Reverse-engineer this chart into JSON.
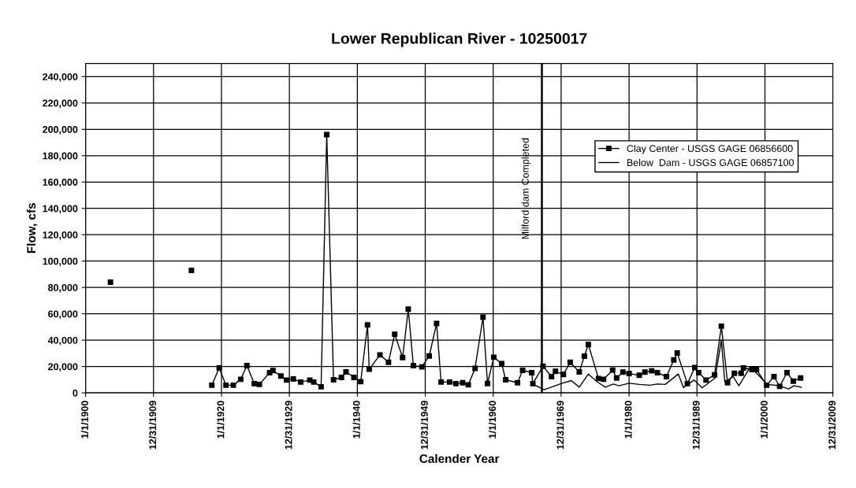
{
  "chart_data": {
    "type": "line",
    "title": "Lower Republican River - 10250017",
    "xlabel": "Calender Year",
    "ylabel": "Flow, cfs",
    "xlim": [
      "1900-01-01",
      "2009-12-31"
    ],
    "xticks": [
      {
        "value": "1900-01-01",
        "label": "1/1/1900"
      },
      {
        "value": "1909-12-31",
        "label": "12/31/1909"
      },
      {
        "value": "1920-01-01",
        "label": "1/1/1920"
      },
      {
        "value": "1929-12-31",
        "label": "12/31/1929"
      },
      {
        "value": "1940-01-01",
        "label": "1/1/1940"
      },
      {
        "value": "1949-12-31",
        "label": "12/31/1949"
      },
      {
        "value": "1960-01-01",
        "label": "1/1/1960"
      },
      {
        "value": "1969-12-31",
        "label": "12/31/1969"
      },
      {
        "value": "1980-01-01",
        "label": "1/1/1980"
      },
      {
        "value": "1989-12-31",
        "label": "12/31/1989"
      },
      {
        "value": "2000-01-01",
        "label": "1/1/2000"
      },
      {
        "value": "2009-12-31",
        "label": "12/31/2009"
      }
    ],
    "ylim": [
      0,
      250000
    ],
    "yticks": [
      0,
      {
        "value": 20000,
        "label": "20,000"
      },
      {
        "value": 40000,
        "label": "40,000"
      },
      {
        "value": 60000,
        "label": "60,000"
      },
      {
        "value": 80000,
        "label": "80,000"
      },
      {
        "value": 100000,
        "label": "100,000"
      },
      {
        "value": 120000,
        "label": "120,000"
      },
      {
        "value": 140000,
        "label": "140,000"
      },
      {
        "value": 160000,
        "label": "160,000"
      },
      {
        "value": 180000,
        "label": "180,000"
      },
      {
        "value": 200000,
        "label": "200,000"
      },
      {
        "value": 220000,
        "label": "220,000"
      },
      {
        "value": 240000,
        "label": "240,000"
      }
    ],
    "grid": true,
    "legend": "top right",
    "ref_lines": [
      {
        "axis": "x",
        "value": "1967-03-01",
        "label": "Milford dam Completed",
        "color": "#000000",
        "line_style": "solid"
      }
    ],
    "series": [
      {
        "name": "Clay Center - USGS GAGE 06856600",
        "color": "#000000",
        "marker": "square",
        "x": [
          "1903-09",
          "1910-01",
          "1915-08",
          "1917-01",
          "1918-08",
          "1919-09",
          "1920-09",
          "1921-10",
          "1922-11",
          "1923-10",
          "1924-11",
          "1925-08",
          "1927-02",
          "1927-08",
          "1928-10",
          "1929-08",
          "1930-08",
          "1931-09",
          "1933-01",
          "1933-08",
          "1934-09",
          "1935-07",
          "1936-07",
          "1937-09",
          "1938-05",
          "1939-07",
          "1940-07",
          "1941-07",
          "1941-10",
          "1943-05",
          "1944-08",
          "1945-07",
          "1946-09",
          "1947-07",
          "1948-04",
          "1949-07",
          "1950-08",
          "1951-09",
          "1952-05",
          "1953-08",
          "1954-07",
          "1955-07",
          "1956-05",
          "1957-05",
          "1958-07",
          "1959-03",
          "1960-02",
          "1961-04",
          "1961-11",
          "1963-08",
          "1964-05",
          "1965-09",
          "1965-11",
          "1967-05",
          "1968-08",
          "1969-03",
          "1970-05",
          "1971-05",
          "1972-09",
          "1973-06",
          "1974-01",
          "1975-07",
          "1976-04",
          "1977-08",
          "1978-03",
          "1979-02",
          "1980-01",
          "1981-07",
          "1982-05",
          "1983-05",
          "1984-03",
          "1985-07",
          "1986-08",
          "1987-02",
          "1988-08",
          "1989-09",
          "1990-04",
          "1991-05",
          "1992-08",
          "1993-08",
          "1994-07",
          "1995-07",
          "1996-07",
          "1996-11",
          "1998-02",
          "1998-10",
          "2000-04",
          "2001-05",
          "2002-03",
          "2003-04",
          "2004-03",
          "2005-04"
        ],
        "values": [
          84000,
          null,
          93000,
          null,
          5800,
          18900,
          5800,
          5800,
          10300,
          20700,
          7000,
          6400,
          15300,
          16900,
          12700,
          9700,
          10500,
          8200,
          9700,
          8200,
          4600,
          196000,
          9900,
          11700,
          15900,
          11700,
          8500,
          51600,
          17900,
          28800,
          23200,
          44500,
          26800,
          63500,
          20700,
          19700,
          28000,
          52600,
          8200,
          8200,
          7000,
          7700,
          6100,
          18600,
          57400,
          7100,
          27000,
          22200,
          9900,
          7700,
          17100,
          15300,
          7000,
          20200,
          12300,
          16300,
          13900,
          23200,
          15900,
          27800,
          36700,
          10900,
          10300,
          17300,
          11300,
          15700,
          14700,
          13300,
          15700,
          16700,
          15300,
          12300,
          25000,
          30200,
          7000,
          19200,
          15300,
          9700,
          13700,
          50600,
          7700,
          14900,
          14900,
          18900,
          17700,
          17700,
          5800,
          12300,
          4900,
          15300,
          8900,
          11300
        ]
      },
      {
        "name": "Below  Dam - USGS GAGE 06857100",
        "color": "#000000",
        "marker": "none",
        "x": [
          "1965-09",
          "1967-07",
          "1970-01",
          "1971-07",
          "1972-09",
          "1974-01",
          "1975-05",
          "1976-07",
          "1977-09",
          "1978-07",
          "1980-01",
          "1981-07",
          "1983-02",
          "1984-03",
          "1985-05",
          "1987-04",
          "1988-01",
          "1989-08",
          "1990-10",
          "1992-09",
          "1993-08",
          "1994-02",
          "1995-05",
          "1996-03",
          "1997-11",
          "1999-04",
          "2000-05",
          "2002-02",
          "2003-07",
          "2004-04",
          "2005-05"
        ],
        "values": [
          7000,
          2400,
          7000,
          9300,
          4300,
          14300,
          8300,
          4300,
          6700,
          5400,
          7300,
          6400,
          5800,
          6700,
          6400,
          14300,
          4000,
          9700,
          3800,
          11300,
          40000,
          8300,
          12300,
          5400,
          19700,
          12300,
          6400,
          5400,
          3000,
          5400,
          4300
        ]
      }
    ]
  }
}
